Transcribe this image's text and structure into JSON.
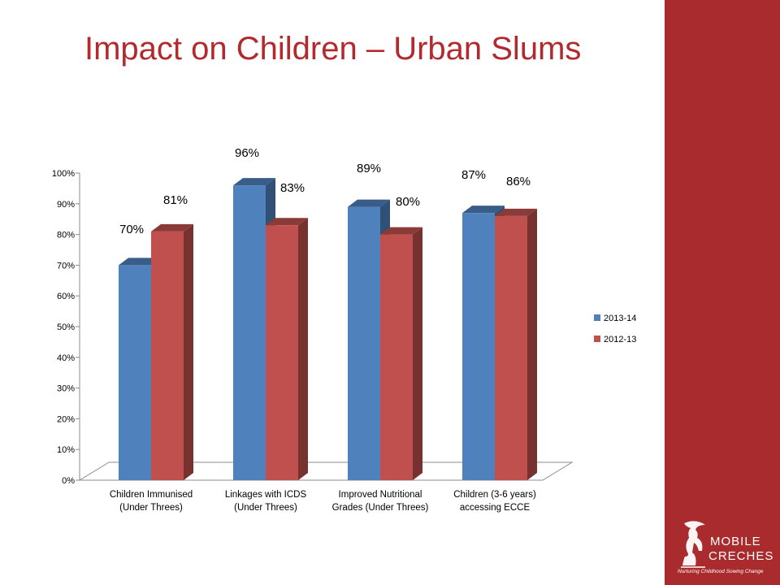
{
  "slide": {
    "title": "Impact on Children – Urban Slums",
    "accent_color": "#a92b2d"
  },
  "logo": {
    "line1": "MOBILE",
    "line2": "CRECHES",
    "tagline": "Nurturing Childhood Sowing Change",
    "icon": "mother-child-icon"
  },
  "chart_data": {
    "type": "bar",
    "style": "3d-clustered",
    "categories": [
      [
        "Children Immunised",
        "(Under Threes)"
      ],
      [
        "Linkages with ICDS",
        "(Under Threes)"
      ],
      [
        "Improved Nutritional",
        "Grades (Under Threes)"
      ],
      [
        "Children (3-6 years)",
        "accessing ECCE"
      ]
    ],
    "series": [
      {
        "name": "2013-14",
        "color": "#4f81bd",
        "values": [
          70,
          96,
          89,
          87
        ],
        "labels": [
          "70%",
          "96%",
          "89%",
          "87%"
        ]
      },
      {
        "name": "2012-13",
        "color": "#c0504d",
        "values": [
          81,
          83,
          80,
          86
        ],
        "labels": [
          "81%",
          "83%",
          "80%",
          "86%"
        ]
      }
    ],
    "ylim": [
      0,
      100
    ],
    "yticks": [
      "0%",
      "10%",
      "20%",
      "30%",
      "40%",
      "50%",
      "60%",
      "70%",
      "80%",
      "90%",
      "100%"
    ],
    "legend": "right",
    "grid": false,
    "title": "",
    "xlabel": "",
    "ylabel": ""
  }
}
